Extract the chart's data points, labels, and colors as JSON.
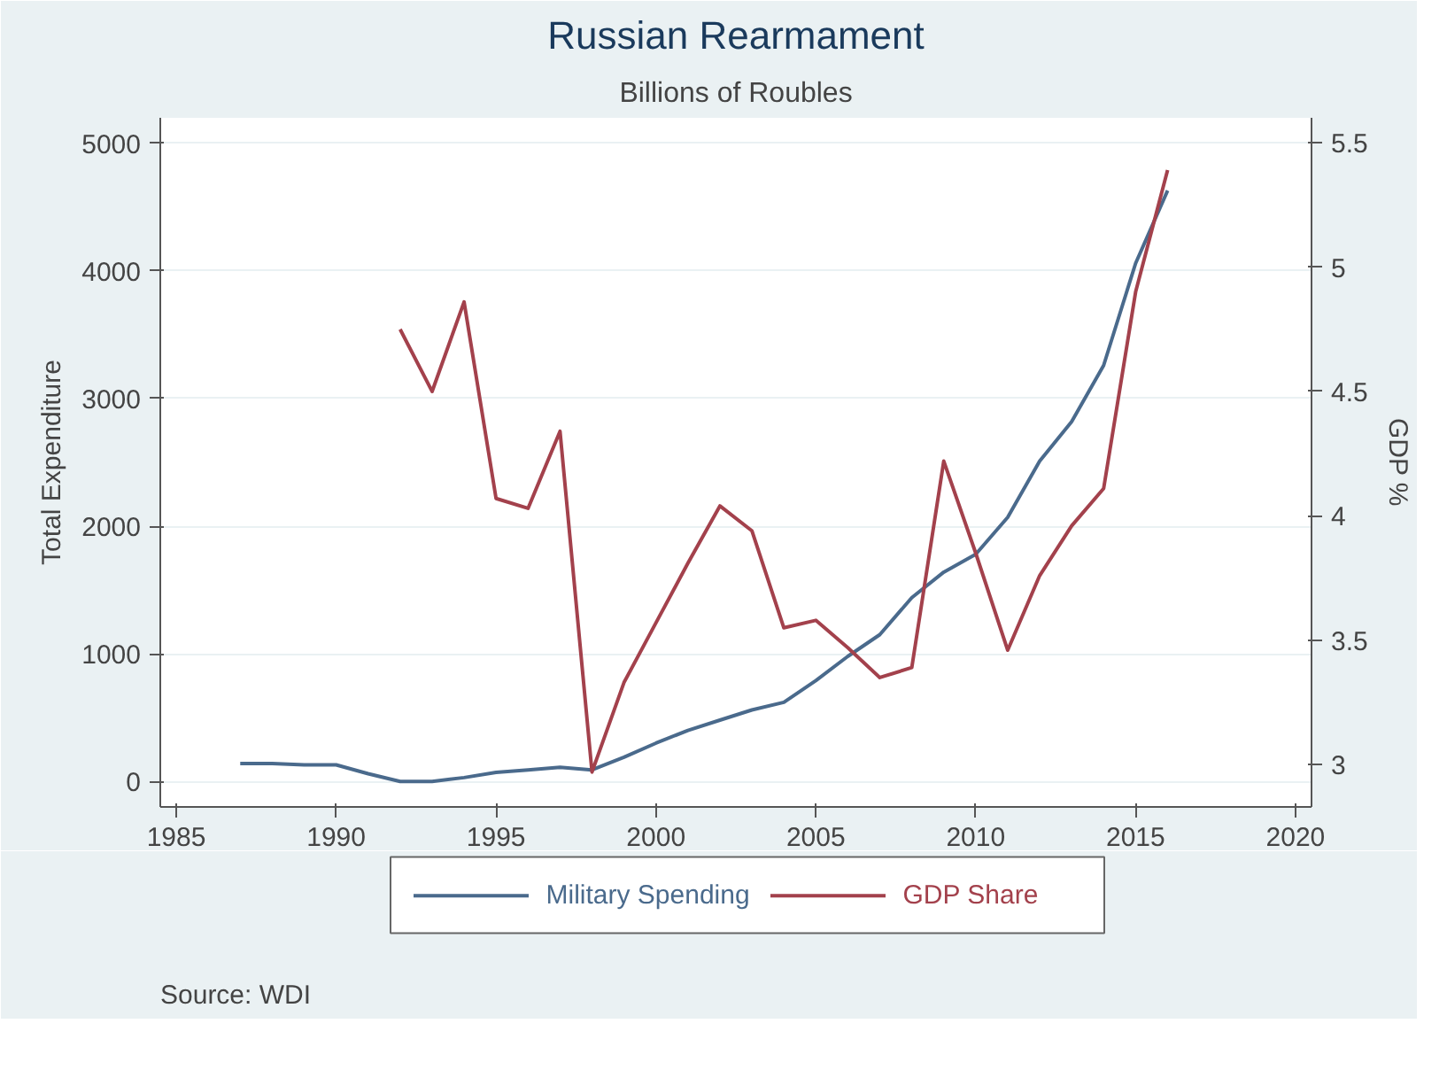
{
  "chart_data": {
    "type": "line",
    "title": "Russian Rearmament",
    "subtitle": "Billions of Roubles",
    "ylabel": "Total Expenditure",
    "y2label": "GDP %",
    "x": [
      1987,
      1988,
      1989,
      1990,
      1991,
      1992,
      1993,
      1994,
      1995,
      1996,
      1997,
      1998,
      1999,
      2000,
      2001,
      2002,
      2003,
      2004,
      2005,
      2006,
      2007,
      2008,
      2009,
      2010,
      2011,
      2012,
      2013,
      2014,
      2015,
      2016
    ],
    "series": [
      {
        "name": "Military Spending",
        "color": "#4a6a8c",
        "values": [
          140,
          140,
          130,
          130,
          60,
          0,
          0,
          30,
          70,
          90,
          110,
          90,
          190,
          300,
          400,
          480,
          560,
          620,
          790,
          980,
          1150,
          1440,
          1640,
          1780,
          2070,
          2510,
          2820,
          3260,
          4060,
          4630
        ]
      },
      {
        "name": "GDP Share",
        "color": "#a3414c",
        "axis": "y2",
        "values": [
          null,
          null,
          null,
          null,
          null,
          4.75,
          4.5,
          4.86,
          4.07,
          4.03,
          4.34,
          2.97,
          3.33,
          3.57,
          3.81,
          4.04,
          3.94,
          3.55,
          3.58,
          3.47,
          3.35,
          3.39,
          4.22,
          3.85,
          3.46,
          3.76,
          3.96,
          4.11,
          4.9,
          5.39
        ]
      }
    ],
    "xlim": [
      1984.5,
      2020.5
    ],
    "xticks": [
      1985,
      1990,
      1995,
      2000,
      2005,
      2010,
      2015,
      2020
    ],
    "ylim": [
      -200,
      5200
    ],
    "yticks": [
      0,
      1000,
      2000,
      3000,
      4000,
      5000
    ],
    "y2lim": [
      2.83,
      5.6
    ],
    "y2ticks": [
      3,
      3.5,
      4,
      4.5,
      5,
      5.5
    ],
    "grid": "y",
    "legend": "bottom",
    "line_style": "solid",
    "annotations": [
      "Source: WDI"
    ]
  }
}
